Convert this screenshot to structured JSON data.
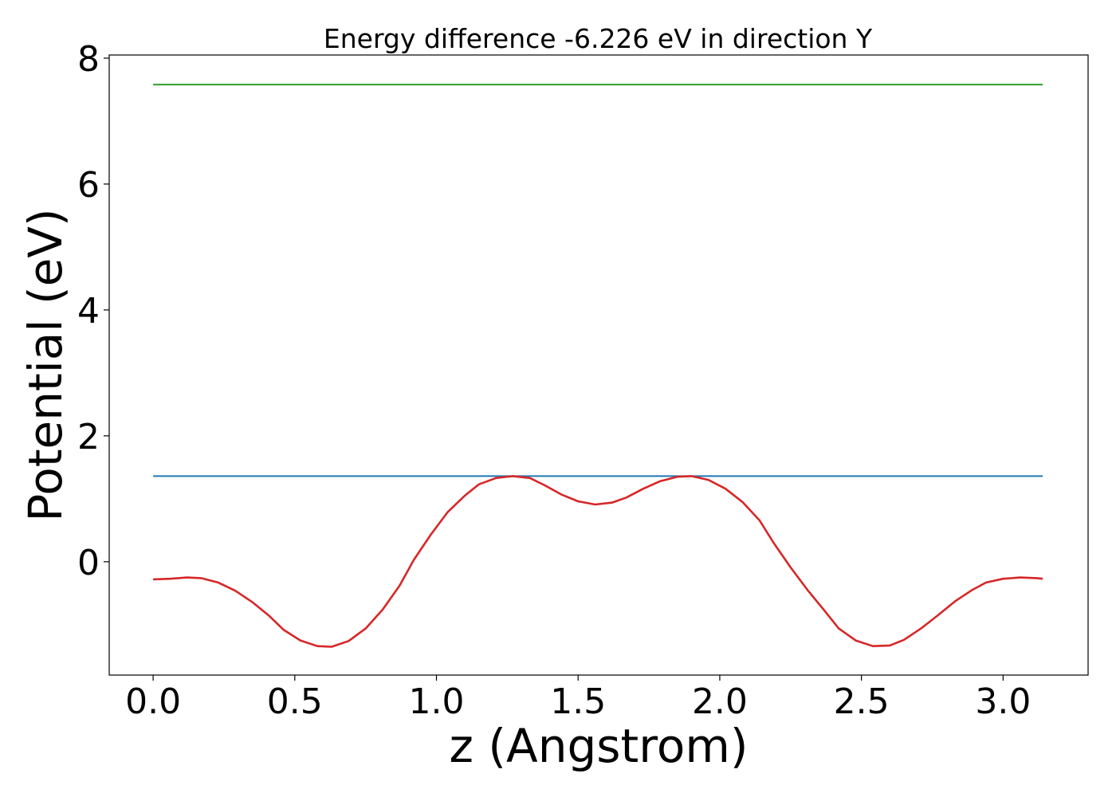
{
  "chart_data": {
    "type": "line",
    "title": "Energy difference -6.226 eV in direction Y",
    "xlabel": "z (Angstrom)",
    "ylabel": "Potential (eV)",
    "xlim": [
      -0.155,
      3.3
    ],
    "ylim": [
      -1.8,
      8.05
    ],
    "x_ticks": [
      "0.0",
      "0.5",
      "1.0",
      "1.5",
      "2.0",
      "2.5",
      "3.0"
    ],
    "y_ticks": [
      "0",
      "2",
      "4",
      "6",
      "8"
    ],
    "grid": false,
    "series": [
      {
        "color": "#2ca02c",
        "x": [
          0.0,
          3.14
        ],
        "y": [
          7.58,
          7.58
        ]
      },
      {
        "color": "#1f77b4",
        "x": [
          0.0,
          3.14
        ],
        "y": [
          1.36,
          1.36
        ]
      },
      {
        "color": "#d62728",
        "x": [
          0.0,
          0.06,
          0.12,
          0.17,
          0.23,
          0.29,
          0.35,
          0.41,
          0.46,
          0.52,
          0.58,
          0.63,
          0.69,
          0.75,
          0.81,
          0.87,
          0.92,
          0.98,
          1.04,
          1.1,
          1.15,
          1.21,
          1.27,
          1.33,
          1.38,
          1.44,
          1.5,
          1.56,
          1.62,
          1.67,
          1.73,
          1.79,
          1.85,
          1.9,
          1.96,
          2.02,
          2.08,
          2.14,
          2.19,
          2.25,
          2.31,
          2.37,
          2.42,
          2.48,
          2.54,
          2.6,
          2.65,
          2.71,
          2.77,
          2.83,
          2.89,
          2.94,
          3.0,
          3.06,
          3.12,
          3.14
        ],
        "y": [
          -0.28,
          -0.27,
          -0.25,
          -0.26,
          -0.33,
          -0.46,
          -0.64,
          -0.86,
          -1.08,
          -1.25,
          -1.34,
          -1.35,
          -1.26,
          -1.06,
          -0.76,
          -0.38,
          0.03,
          0.43,
          0.79,
          1.05,
          1.23,
          1.33,
          1.36,
          1.33,
          1.22,
          1.07,
          0.96,
          0.91,
          0.94,
          1.02,
          1.16,
          1.28,
          1.35,
          1.36,
          1.3,
          1.16,
          0.95,
          0.66,
          0.3,
          -0.09,
          -0.45,
          -0.78,
          -1.06,
          -1.25,
          -1.34,
          -1.33,
          -1.24,
          -1.06,
          -0.85,
          -0.63,
          -0.45,
          -0.33,
          -0.27,
          -0.25,
          -0.26,
          -0.27
        ]
      }
    ]
  }
}
